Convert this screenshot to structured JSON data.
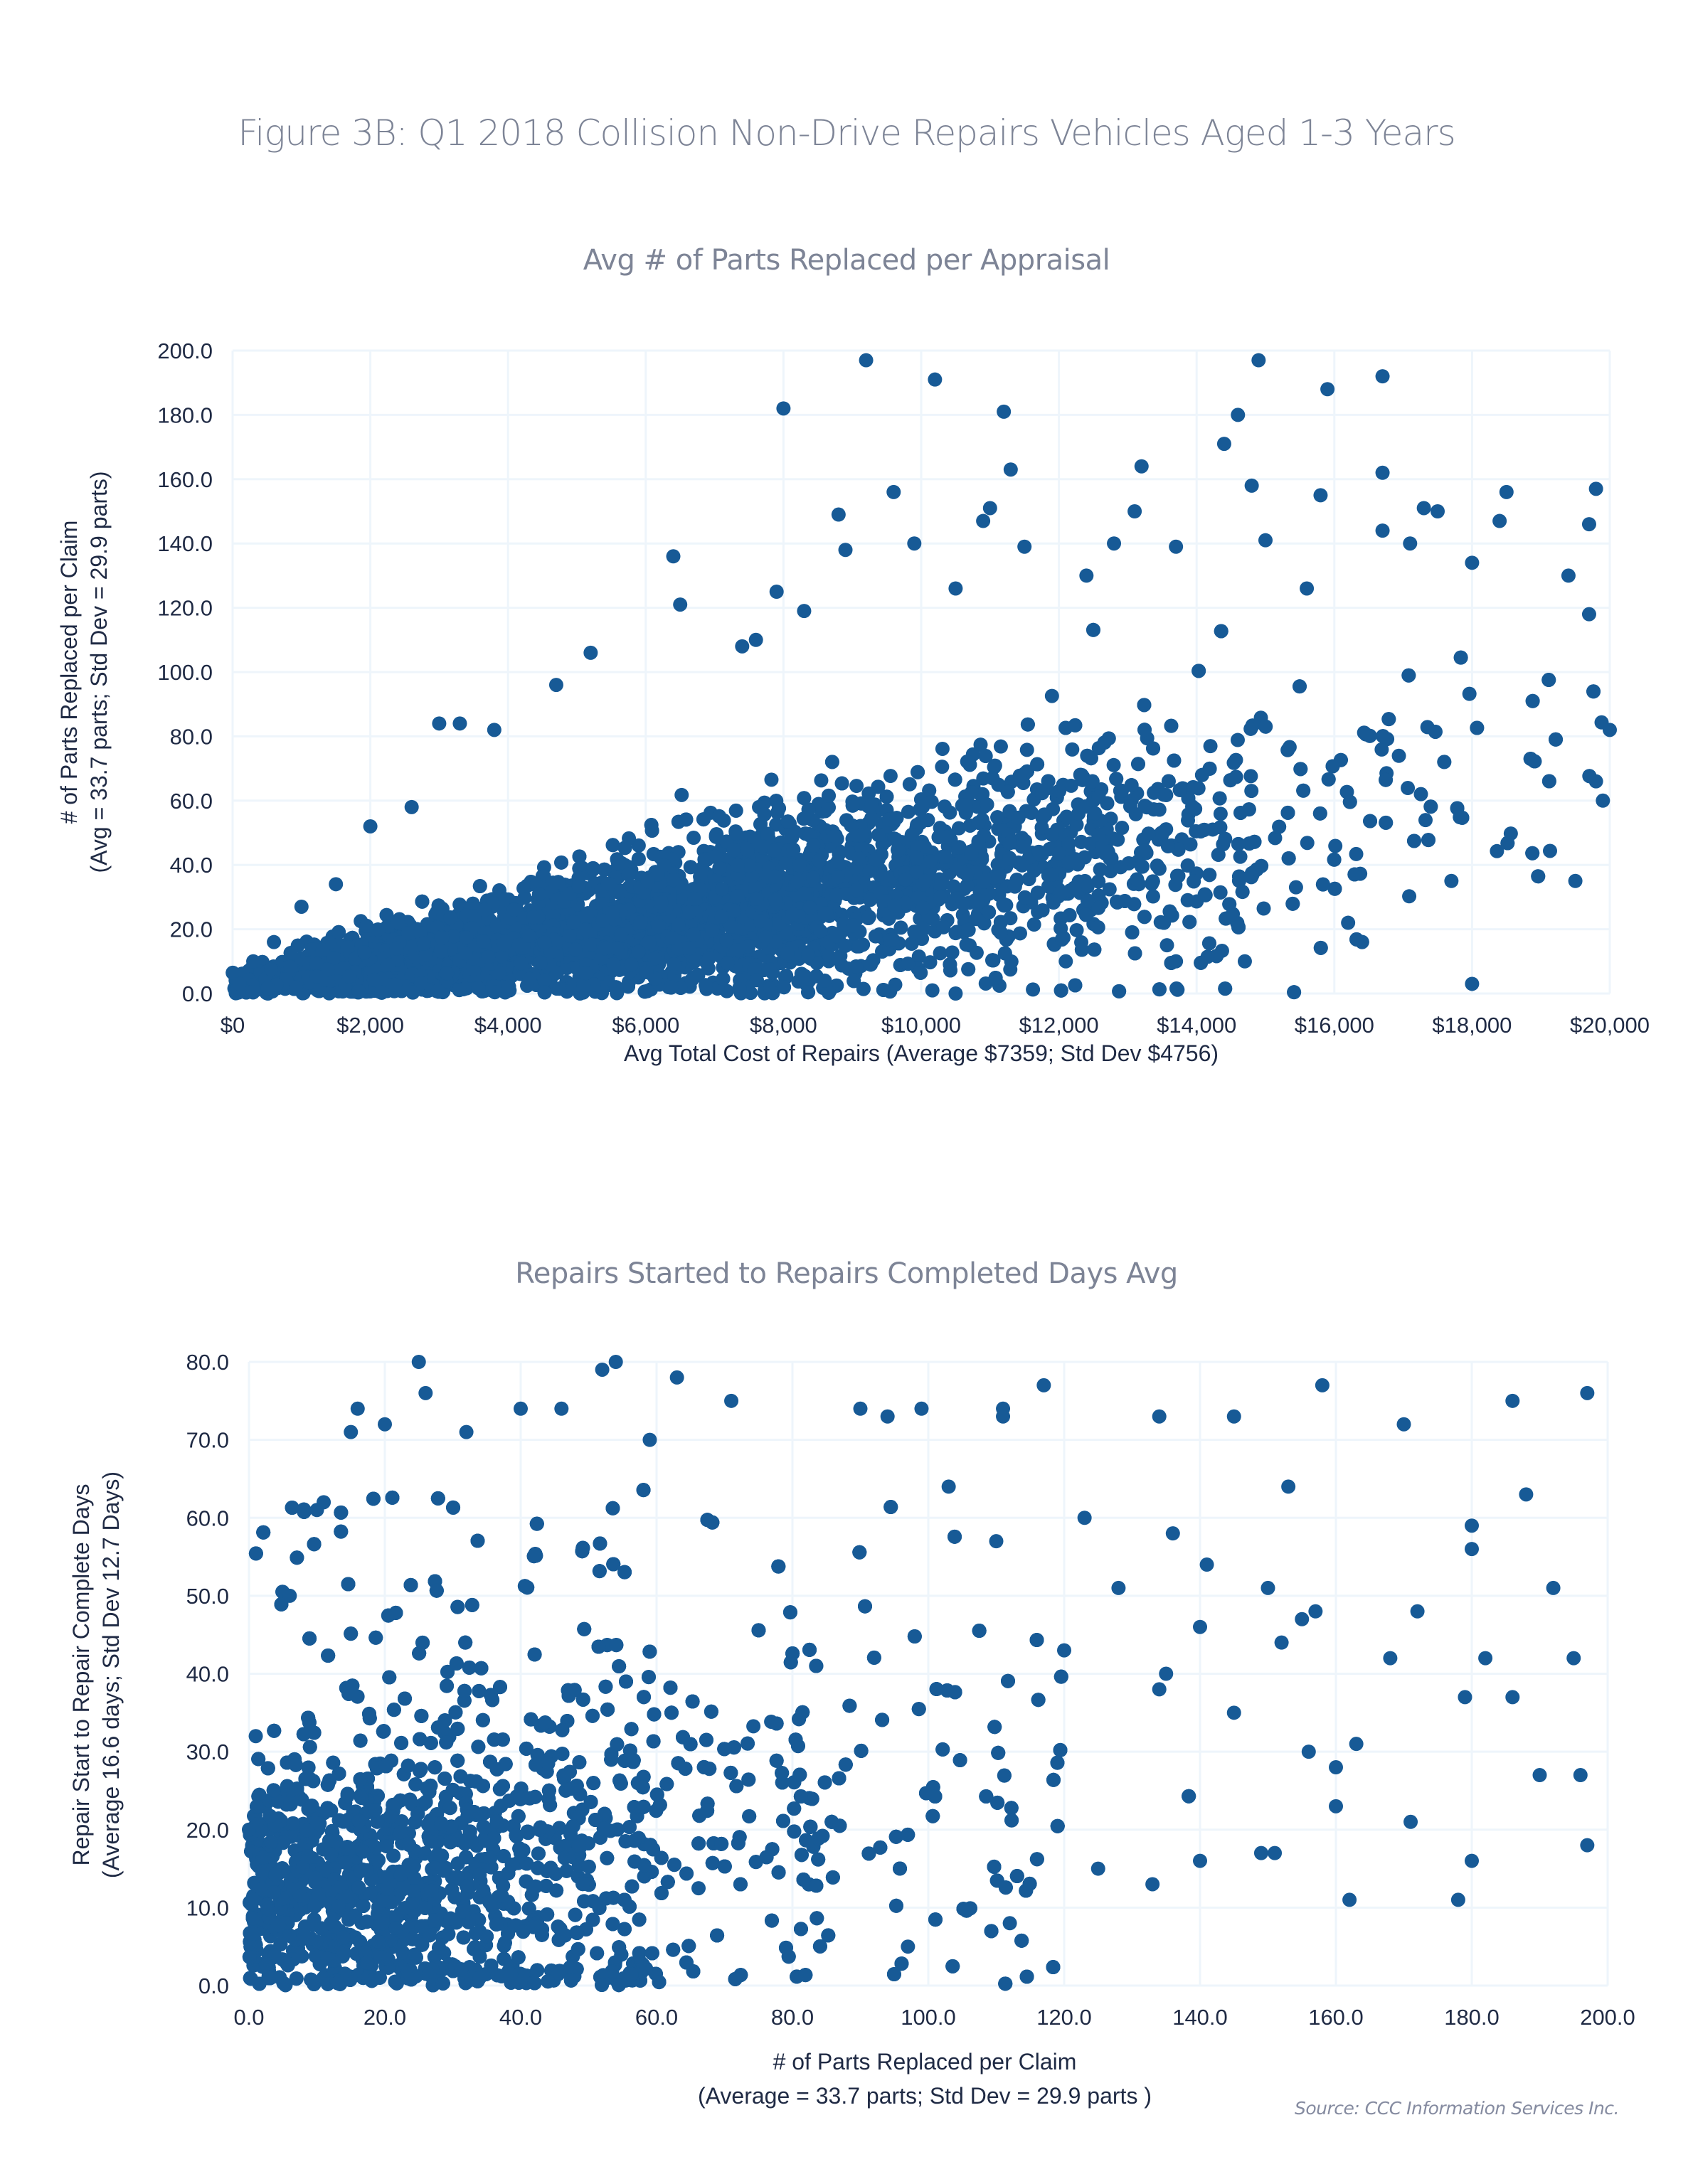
{
  "figure_title": "Figure 3B: Q1 2018 Collision Non-Drive Repairs Vehicles Aged 1-3 Years",
  "source": "Source: CCC Information Services Inc.",
  "colors": {
    "marker": "#175a96",
    "grid": "#eef5fb",
    "text": "#1f2a44",
    "title": "#7d8496"
  },
  "chart_data": [
    {
      "type": "scatter",
      "title": "Avg # of Parts Replaced per Appraisal",
      "xlabel": "Avg Total Cost of Repairs (Average  $7359; Std Dev $4756)",
      "ylabel": [
        "# of Parts Replaced per Claim",
        "(Avg = 33.7 parts; Std Dev = 29.9 parts)"
      ],
      "xlim": [
        0,
        20000
      ],
      "ylim": [
        0,
        200
      ],
      "x_ticks": [
        0,
        2000,
        4000,
        6000,
        8000,
        10000,
        12000,
        14000,
        16000,
        18000,
        20000
      ],
      "x_tick_labels": [
        "$0",
        "$2,000",
        "$4,000",
        "$6,000",
        "$8,000",
        "$10,000",
        "$12,000",
        "$14,000",
        "$16,000",
        "$18,000",
        "$20,000"
      ],
      "y_ticks": [
        0,
        20,
        40,
        60,
        80,
        100,
        120,
        140,
        160,
        180,
        200
      ],
      "y_tick_labels": [
        "0.0",
        "20.0",
        "40.0",
        "60.0",
        "80.0",
        "100.0",
        "120.0",
        "140.0",
        "160.0",
        "180.0",
        "200.0"
      ],
      "grid": true,
      "summary": {
        "x_mean": 7359,
        "x_std": 4756,
        "y_mean": 33.7,
        "y_std": 29.9
      },
      "points": [
        [
          9200,
          197
        ],
        [
          10200,
          191
        ],
        [
          8000,
          182
        ],
        [
          11200,
          181
        ],
        [
          14900,
          197
        ],
        [
          16700,
          192
        ],
        [
          15900,
          188
        ],
        [
          14600,
          180
        ],
        [
          14400,
          171
        ],
        [
          11300,
          163
        ],
        [
          13200,
          164
        ],
        [
          16700,
          162
        ],
        [
          15800,
          155
        ],
        [
          9600,
          156
        ],
        [
          14800,
          158
        ],
        [
          10900,
          147
        ],
        [
          8800,
          149
        ],
        [
          11000,
          151
        ],
        [
          13100,
          150
        ],
        [
          17300,
          151
        ],
        [
          18500,
          156
        ],
        [
          18400,
          147
        ],
        [
          19800,
          157
        ],
        [
          19700,
          146
        ],
        [
          17500,
          150
        ],
        [
          9900,
          140
        ],
        [
          6400,
          136
        ],
        [
          8900,
          138
        ],
        [
          12800,
          140
        ],
        [
          15000,
          141
        ],
        [
          16700,
          144
        ],
        [
          11500,
          139
        ],
        [
          13700,
          139
        ],
        [
          17100,
          140
        ],
        [
          18000,
          134
        ],
        [
          19400,
          130
        ],
        [
          6500,
          121
        ],
        [
          7900,
          125
        ],
        [
          8300,
          119
        ],
        [
          10500,
          126
        ],
        [
          12400,
          130
        ],
        [
          15600,
          126
        ],
        [
          19700,
          118
        ],
        [
          3000,
          84
        ],
        [
          3300,
          84
        ],
        [
          3800,
          82
        ],
        [
          4700,
          96
        ],
        [
          5200,
          106
        ],
        [
          7600,
          110
        ],
        [
          7400,
          108
        ],
        [
          2600,
          58
        ],
        [
          2000,
          52
        ],
        [
          1500,
          34
        ],
        [
          1000,
          27
        ],
        [
          600,
          16
        ],
        [
          300,
          10
        ],
        [
          100,
          3
        ],
        [
          18000,
          3
        ],
        [
          10500,
          0
        ],
        [
          20000,
          82
        ],
        [
          19800,
          66
        ],
        [
          19500,
          35
        ],
        [
          19900,
          60
        ],
        [
          14700,
          10
        ],
        [
          16200,
          22
        ],
        [
          17700,
          35
        ],
        [
          13700,
          10
        ],
        [
          12100,
          10
        ],
        [
          8600,
          4
        ]
      ]
    },
    {
      "type": "scatter",
      "title": "Repairs Started to Repairs Completed Days Avg",
      "xlabel": [
        "# of Parts Replaced per Claim",
        "(Average  = 33.7 parts; Std Dev = 29.9 parts )"
      ],
      "ylabel": [
        "Repair Start to Repair Complete Days",
        "(Average  16.6 days; Std Dev 12.7 Days)"
      ],
      "xlim": [
        0,
        200
      ],
      "ylim": [
        0,
        80
      ],
      "x_ticks": [
        0,
        20,
        40,
        60,
        80,
        100,
        120,
        140,
        160,
        180,
        200
      ],
      "x_tick_labels": [
        "0.0",
        "20.0",
        "40.0",
        "60.0",
        "80.0",
        "100.0",
        "120.0",
        "140.0",
        "160.0",
        "180.0",
        "200.0"
      ],
      "y_ticks": [
        0,
        10,
        20,
        30,
        40,
        50,
        60,
        70,
        80
      ],
      "y_tick_labels": [
        "0.0",
        "10.0",
        "20.0",
        "30.0",
        "40.0",
        "50.0",
        "60.0",
        "70.0",
        "80.0"
      ],
      "grid": true,
      "summary": {
        "x_mean": 33.7,
        "x_std": 29.9,
        "y_mean": 16.6,
        "y_std": 12.7
      },
      "points": [
        [
          25,
          80
        ],
        [
          26,
          76
        ],
        [
          52,
          79
        ],
        [
          54,
          80
        ],
        [
          63,
          78
        ],
        [
          117,
          77
        ],
        [
          158,
          77
        ],
        [
          197,
          76
        ],
        [
          186,
          75
        ],
        [
          134,
          73
        ],
        [
          145,
          73
        ],
        [
          170,
          72
        ],
        [
          111,
          74
        ],
        [
          111,
          73
        ],
        [
          99,
          74
        ],
        [
          71,
          75
        ],
        [
          16,
          74
        ],
        [
          15,
          71
        ],
        [
          20,
          72
        ],
        [
          32,
          71
        ],
        [
          40,
          74
        ],
        [
          46,
          74
        ],
        [
          59,
          70
        ],
        [
          94,
          73
        ],
        [
          90,
          74
        ],
        [
          153,
          64
        ],
        [
          103,
          64
        ],
        [
          188,
          63
        ],
        [
          180,
          59
        ],
        [
          180,
          56
        ],
        [
          123,
          60
        ],
        [
          136,
          58
        ],
        [
          141,
          54
        ],
        [
          110,
          57
        ],
        [
          11,
          62
        ],
        [
          10,
          61
        ],
        [
          192,
          51
        ],
        [
          150,
          51
        ],
        [
          128,
          51
        ],
        [
          157,
          48
        ],
        [
          172,
          48
        ],
        [
          155,
          47
        ],
        [
          140,
          46
        ],
        [
          152,
          44
        ],
        [
          6,
          50
        ],
        [
          195,
          42
        ],
        [
          182,
          42
        ],
        [
          168,
          42
        ],
        [
          120,
          43
        ],
        [
          179,
          37
        ],
        [
          186,
          37
        ],
        [
          135,
          40
        ],
        [
          134,
          38
        ],
        [
          145,
          35
        ],
        [
          196,
          27
        ],
        [
          190,
          27
        ],
        [
          156,
          30
        ],
        [
          160,
          28
        ],
        [
          163,
          31
        ],
        [
          171,
          21
        ],
        [
          180,
          16
        ],
        [
          162,
          11
        ],
        [
          178,
          11
        ],
        [
          197,
          18
        ],
        [
          160,
          23
        ],
        [
          149,
          17
        ],
        [
          151,
          17
        ],
        [
          140,
          16
        ],
        [
          133,
          13
        ],
        [
          125,
          15
        ],
        [
          112,
          8
        ],
        [
          97,
          5
        ],
        [
          1,
          32
        ],
        [
          0,
          20
        ]
      ]
    }
  ]
}
